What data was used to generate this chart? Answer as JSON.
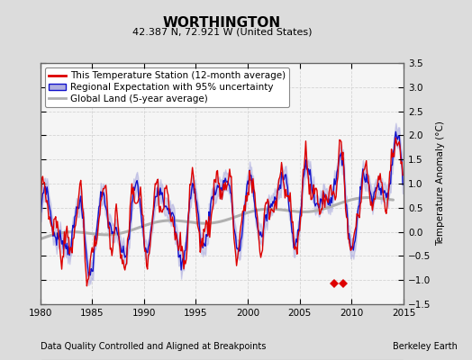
{
  "title": "WORTHINGTON",
  "subtitle": "42.387 N, 72.921 W (United States)",
  "xlabel_bottom": "Data Quality Controlled and Aligned at Breakpoints",
  "xlabel_right": "Berkeley Earth",
  "ylabel": "Temperature Anomaly (°C)",
  "xlim": [
    1980,
    2015
  ],
  "ylim": [
    -1.5,
    3.5
  ],
  "yticks": [
    -1.5,
    -1,
    -0.5,
    0,
    0.5,
    1,
    1.5,
    2,
    2.5,
    3,
    3.5
  ],
  "xticks": [
    1980,
    1985,
    1990,
    1995,
    2000,
    2005,
    2010,
    2015
  ],
  "bg_color": "#dcdcdc",
  "plot_bg_color": "#f5f5f5",
  "grid_color": "#cccccc",
  "legend_entries": [
    "This Temperature Station (12-month average)",
    "Regional Expectation with 95% uncertainty",
    "Global Land (5-year average)"
  ],
  "station_color": "#dd0000",
  "regional_color": "#1111cc",
  "regional_fill_color": "#b0b0e0",
  "global_color": "#b0b0b0",
  "station_move_x1": 2008.3,
  "station_move_x2": 2009.2,
  "station_move_y": -1.08,
  "marker_station_color": "#dd0000",
  "marker_record_gap_color": "#228822",
  "marker_time_obs_color": "#1111cc",
  "marker_empirical_color": "#333333"
}
